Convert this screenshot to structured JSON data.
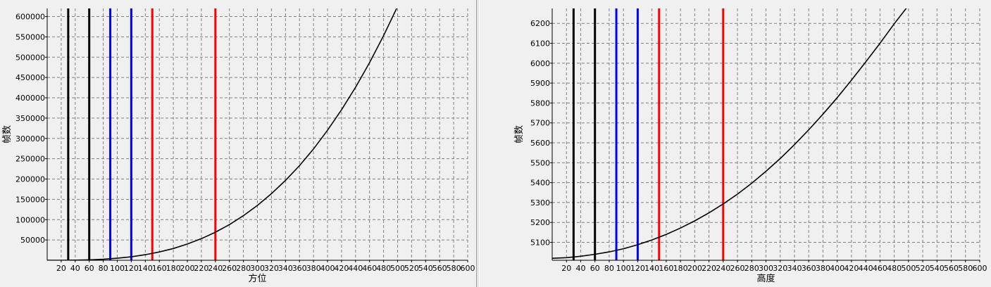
{
  "chart_data": [
    {
      "type": "line",
      "xlabel": "方位",
      "ylabel": "帧数",
      "xlim": [
        0,
        600
      ],
      "ylim": [
        0,
        620000
      ],
      "xticks": [
        20,
        40,
        60,
        80,
        100,
        120,
        140,
        160,
        180,
        200,
        220,
        240,
        260,
        280,
        300,
        320,
        340,
        360,
        380,
        400,
        420,
        440,
        460,
        480,
        500,
        520,
        540,
        560,
        580,
        600
      ],
      "yticks": [
        50000,
        100000,
        150000,
        200000,
        250000,
        300000,
        350000,
        400000,
        450000,
        500000,
        550000,
        600000
      ],
      "grid": true,
      "series": [
        {
          "color": "#000000",
          "x": [
            0,
            20,
            40,
            60,
            80,
            100,
            120,
            140,
            160,
            180,
            200,
            220,
            240,
            260,
            280,
            300,
            320,
            340,
            360,
            380,
            400,
            420,
            440,
            460,
            480,
            500
          ],
          "y": [
            0,
            50,
            400,
            1000,
            2500,
            5000,
            8500,
            13700,
            20400,
            29000,
            40000,
            53200,
            69100,
            87800,
            109800,
            135000,
            164000,
            196500,
            233000,
            273900,
            320000,
            370500,
            425900,
            486700,
            553000,
            625000
          ]
        }
      ],
      "vlines": [
        {
          "x": 30,
          "color": "#000000"
        },
        {
          "x": 60,
          "color": "#000000"
        },
        {
          "x": 90,
          "color": "#0000ff"
        },
        {
          "x": 120,
          "color": "#0000ff"
        },
        {
          "x": 150,
          "color": "#ff0000"
        },
        {
          "x": 240,
          "color": "#ff0000"
        }
      ]
    },
    {
      "type": "line",
      "xlabel": "高度",
      "ylabel": "帧数",
      "xlim": [
        0,
        600
      ],
      "ylim": [
        5010,
        6275
      ],
      "xticks": [
        20,
        40,
        60,
        80,
        100,
        120,
        140,
        160,
        180,
        200,
        220,
        240,
        260,
        280,
        300,
        320,
        340,
        360,
        380,
        400,
        420,
        440,
        460,
        480,
        500,
        520,
        540,
        560,
        580,
        600
      ],
      "yticks": [
        5100,
        5200,
        5300,
        5400,
        5500,
        5600,
        5700,
        5800,
        5900,
        6000,
        6100,
        6200
      ],
      "grid": true,
      "series": [
        {
          "color": "#000000",
          "x": [
            0,
            20,
            40,
            60,
            80,
            100,
            120,
            140,
            160,
            180,
            200,
            220,
            240,
            260,
            280,
            300,
            320,
            340,
            360,
            380,
            400,
            420,
            440,
            460,
            480,
            500
          ],
          "y": [
            5020,
            5023,
            5030,
            5040,
            5052,
            5068,
            5088,
            5112,
            5140,
            5172,
            5208,
            5248,
            5293,
            5342,
            5397,
            5457,
            5521,
            5591,
            5665,
            5744,
            5827,
            5915,
            6006,
            6100,
            6198,
            6290
          ]
        }
      ],
      "vlines": [
        {
          "x": 30,
          "color": "#000000"
        },
        {
          "x": 60,
          "color": "#000000"
        },
        {
          "x": 90,
          "color": "#0000ff"
        },
        {
          "x": 120,
          "color": "#0000ff"
        },
        {
          "x": 150,
          "color": "#ff0000"
        },
        {
          "x": 240,
          "color": "#ff0000"
        }
      ]
    }
  ]
}
